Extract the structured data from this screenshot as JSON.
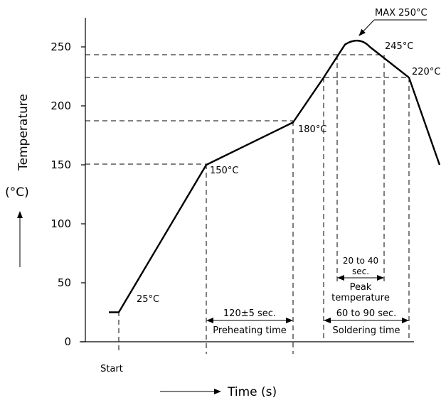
{
  "chart_data": {
    "type": "line",
    "y_axis": {
      "range": [
        0,
        260
      ],
      "ticks": [
        0,
        50,
        100,
        150,
        200,
        250
      ],
      "label_line1": "Temperature",
      "label_line2": "(°C)"
    },
    "x_axis": {
      "label": "Time (s)",
      "start_label": "Start"
    },
    "profile": {
      "series": [
        {
          "points": [
            {
              "t": -0.5,
              "temp": 25
            },
            {
              "t": 0,
              "temp": 25
            },
            {
              "t": 1,
              "temp": 150
            },
            {
              "t": 2,
              "temp": 186
            },
            {
              "t": 2.35,
              "temp": 224
            },
            {
              "t": 2.52,
              "temp": 252
            },
            {
              "t": 2.7,
              "temp": 256
            },
            {
              "t": 2.85,
              "temp": 250
            },
            {
              "t": 3.3,
              "temp": 224
            },
            {
              "t": 3.7,
              "temp": 150
            }
          ]
        }
      ]
    },
    "labels": {
      "start_temp": "25°C",
      "preheat_start": "150°C",
      "preheat_end": "180°C",
      "peak_max": "MAX 250°C",
      "peak_245": "245°C",
      "soldering_220": "220°C"
    },
    "annotations": {
      "preheat_duration": "120±5 sec.",
      "preheat_label": "Preheating time",
      "peak_duration_line1": "20 to 40",
      "peak_duration_line2": "sec.",
      "peak_label_line1": "Peak",
      "peak_label_line2": "temperature",
      "solder_duration": "60 to 90 sec.",
      "solder_label": "Soldering time"
    },
    "grid": false
  }
}
